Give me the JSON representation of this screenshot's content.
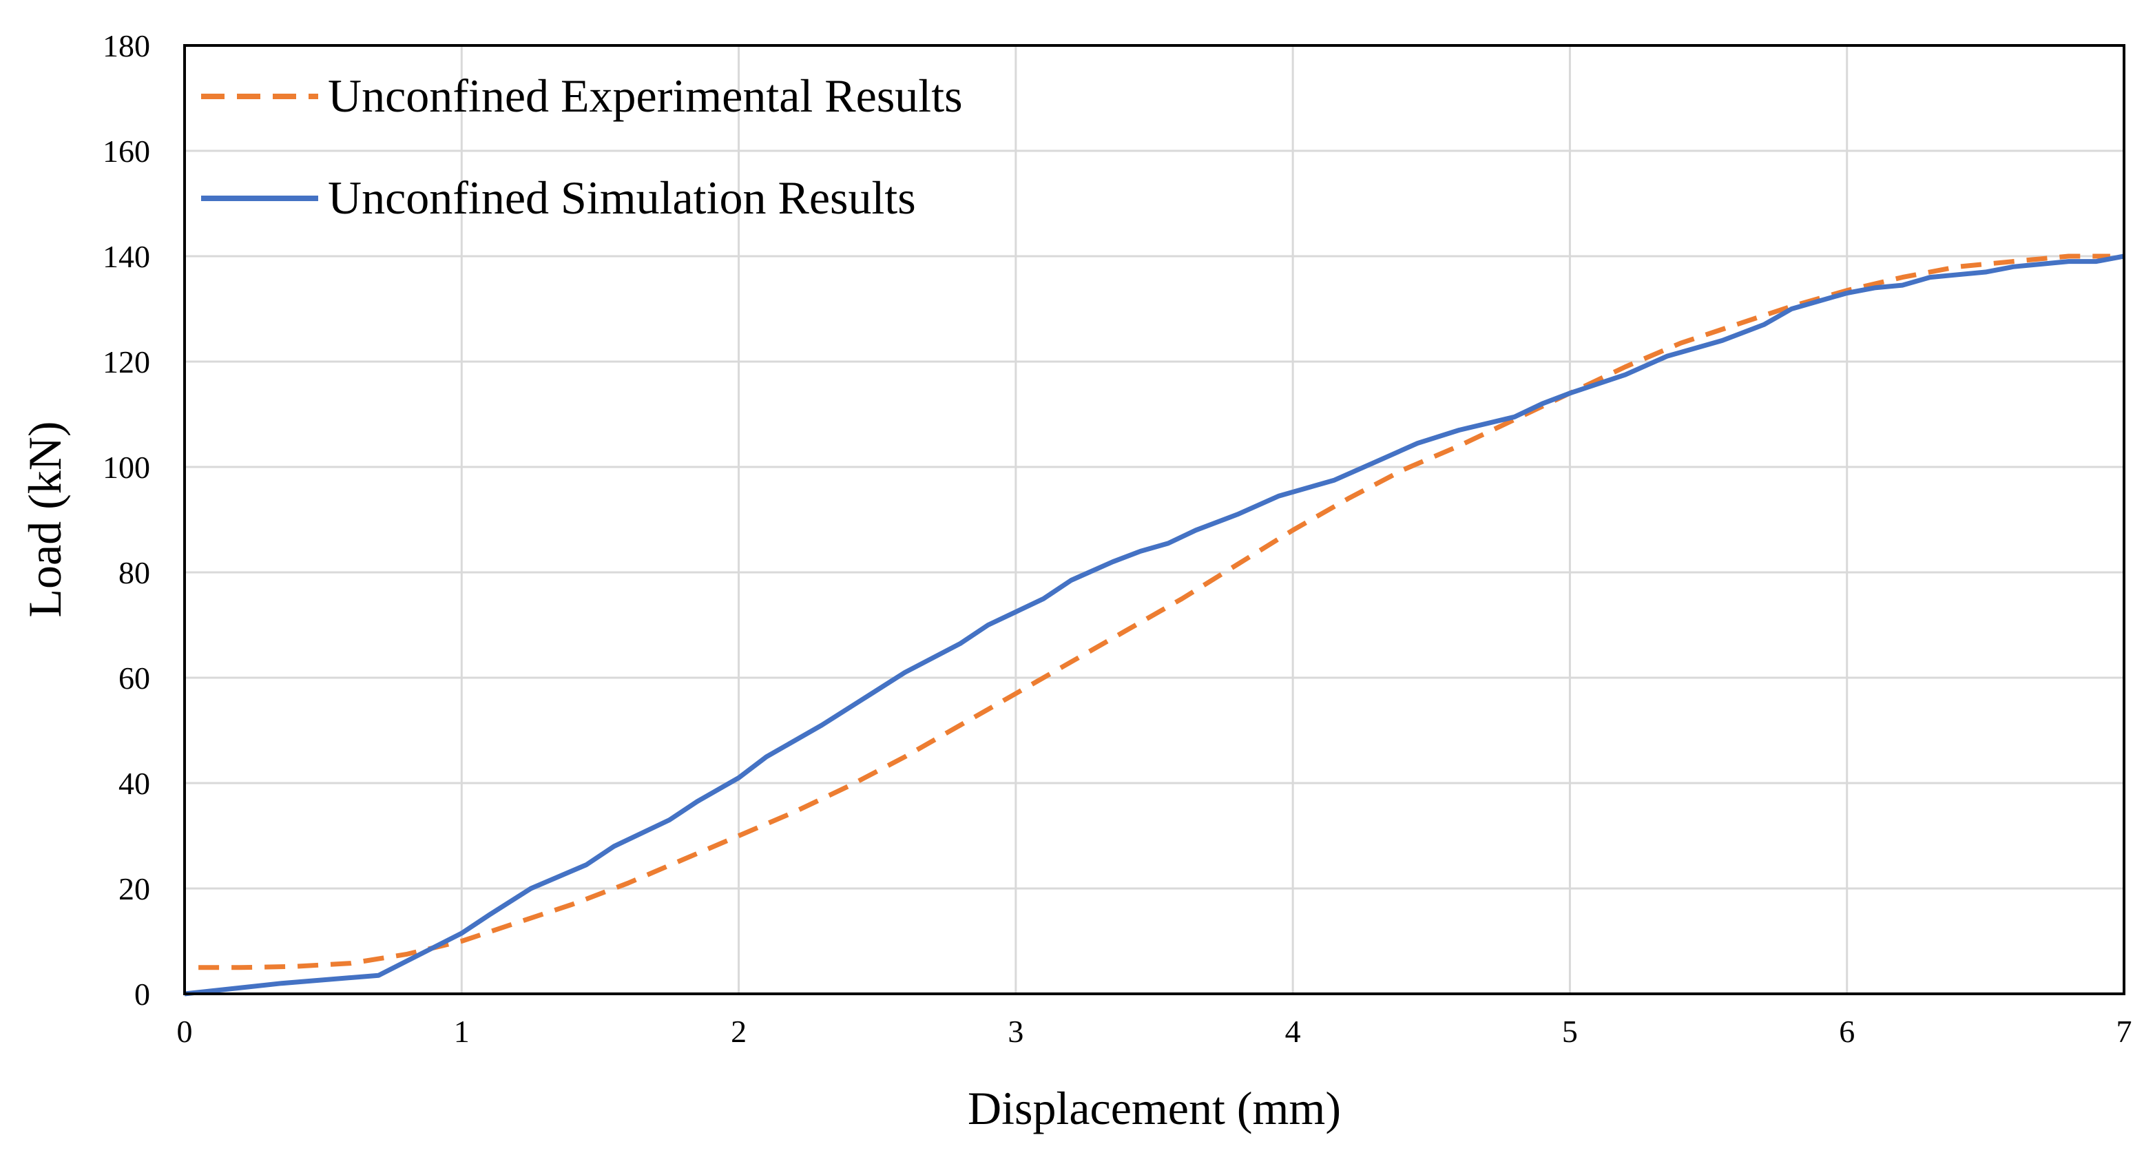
{
  "chart_data": {
    "type": "line",
    "title": "",
    "xlabel": "Displacement (mm)",
    "ylabel": "Load (kN)",
    "xlim": [
      0,
      7
    ],
    "ylim": [
      0,
      180
    ],
    "xticks": [
      0,
      1,
      2,
      3,
      4,
      5,
      6,
      7
    ],
    "yticks": [
      0,
      20,
      40,
      60,
      80,
      100,
      120,
      140,
      160,
      180
    ],
    "grid": true,
    "legend_position": "top-left",
    "series": [
      {
        "name": "Unconfined Experimental Results",
        "color": "#ed7d31",
        "style": "dashed",
        "x": [
          0.05,
          0.2,
          0.4,
          0.6,
          0.8,
          1.0,
          1.2,
          1.4,
          1.6,
          1.8,
          2.0,
          2.2,
          2.4,
          2.6,
          2.8,
          3.0,
          3.2,
          3.4,
          3.6,
          3.8,
          4.0,
          4.2,
          4.4,
          4.6,
          4.8,
          5.0,
          5.2,
          5.4,
          5.6,
          5.8,
          6.0,
          6.2,
          6.4,
          6.6,
          6.8,
          6.95
        ],
        "y": [
          5,
          5,
          5.2,
          5.8,
          7.5,
          10,
          13.5,
          17,
          21,
          25.5,
          30,
          34.5,
          39.5,
          45,
          51,
          57,
          63,
          69,
          75,
          81.5,
          88,
          94,
          99.5,
          104,
          109,
          114,
          119,
          123.5,
          127,
          130.5,
          133.5,
          136,
          138,
          139,
          140,
          140
        ]
      },
      {
        "name": "Unconfined Simulation Results",
        "color": "#4472c4",
        "style": "solid",
        "x": [
          0,
          0.35,
          0.7,
          0.85,
          1.0,
          1.1,
          1.25,
          1.45,
          1.55,
          1.75,
          1.85,
          2.0,
          2.1,
          2.3,
          2.45,
          2.6,
          2.8,
          2.9,
          3.0,
          3.1,
          3.2,
          3.35,
          3.45,
          3.55,
          3.65,
          3.8,
          3.95,
          4.15,
          4.3,
          4.45,
          4.6,
          4.8,
          4.9,
          5.0,
          5.2,
          5.35,
          5.55,
          5.7,
          5.8,
          6.0,
          6.1,
          6.2,
          6.3,
          6.4,
          6.5,
          6.6,
          6.8,
          6.9,
          7.0
        ],
        "y": [
          0,
          2,
          3.5,
          7.5,
          11.5,
          15,
          20,
          24.5,
          28,
          33,
          36.5,
          41,
          45,
          51,
          56,
          61,
          66.5,
          70,
          72.5,
          75,
          78.5,
          82,
          84,
          85.5,
          88,
          91,
          94.5,
          97.5,
          101,
          104.5,
          107,
          109.5,
          112,
          114,
          117.5,
          121,
          124,
          127,
          130,
          133,
          134,
          134.5,
          136,
          136.5,
          137,
          138,
          139,
          139,
          140
        ]
      }
    ]
  }
}
